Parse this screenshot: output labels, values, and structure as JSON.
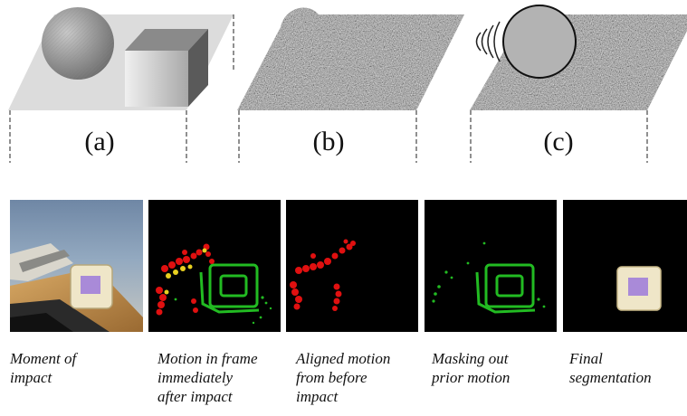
{
  "top_panels": [
    {
      "label": "(a)"
    },
    {
      "label": "(b)"
    },
    {
      "label": "(c)"
    }
  ],
  "bottom_panels": [
    {
      "caption": "Moment of\nimpact"
    },
    {
      "caption": "Motion in frame\nimmediately\nafter impact"
    },
    {
      "caption": "Aligned motion\nfrom before\nimpact"
    },
    {
      "caption": "Masking out\nprior motion"
    },
    {
      "caption": "Final\nsegmentation"
    }
  ],
  "colors": {
    "motion_red": "#e01010",
    "motion_green": "#22bb22",
    "motion_yellow": "#e8d020",
    "block_purple": "#a98ad8",
    "block_cream": "#efe6c8"
  }
}
